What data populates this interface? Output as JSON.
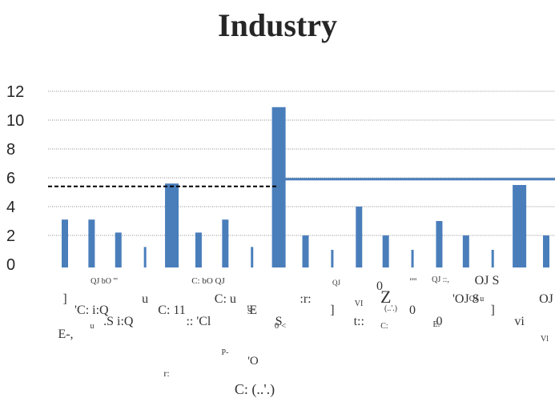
{
  "chart_data": {
    "type": "bar",
    "title": "Industry",
    "xlabel": "",
    "ylabel": "",
    "ylim": [
      0,
      12
    ],
    "yticks": [
      "0",
      "2",
      "4",
      "6",
      "8",
      "10",
      "12"
    ],
    "grid": true,
    "accent_color": "#4a7ebb",
    "categories": [
      "]",
      "'C: i:Q",
      ".S i:Q",
      "u",
      "C: 11",
      ":: 'Cl",
      "C: u",
      "'E",
      "S",
      ":r:",
      "]",
      "t::",
      "Z",
      "0",
      "0",
      "'OJ S",
      "]",
      "vi",
      "OJ"
    ],
    "values": [
      3.1,
      3.1,
      2.2,
      1.2,
      5.6,
      2.2,
      3.1,
      1.2,
      10.9,
      2.0,
      1.0,
      4.0,
      2.0,
      1.0,
      3.0,
      2.0,
      1.0,
      5.5,
      2.0
    ],
    "reference_lines": [
      {
        "style": "dashed",
        "y": 5.4,
        "x_from_category": 0,
        "x_to_category": 8
      },
      {
        "style": "solid",
        "y": 5.9,
        "x_from_category": 8,
        "x_to_category": 18
      }
    ],
    "garbled_label_fragments": [
      "QJ bO '''",
      "C: bO QJ",
      "QJ",
      "0",
      "''''",
      "QJ ::,",
      "OJ S",
      "QJ u",
      "(..'.)",
      "'O",
      "C: (..'.)",
      "S\"",
      "VI",
      "Vl",
      "E-,",
      "0 <",
      "E:",
      "r:",
      "P-",
      "u",
      "C:"
    ]
  }
}
